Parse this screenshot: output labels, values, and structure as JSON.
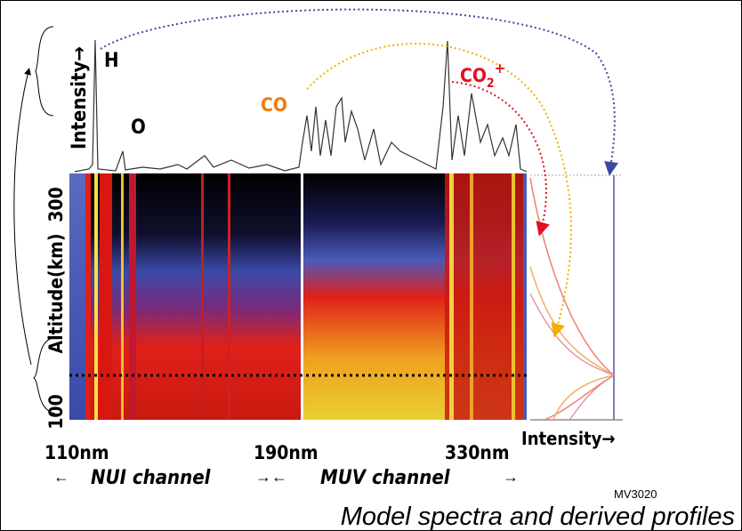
{
  "labels": {
    "intensity_top": "Intensity→",
    "h": "H",
    "o": "O",
    "co": "CO",
    "co2_plus": {
      "base": "CO",
      "sub": "2",
      "sup": "+"
    },
    "alt_300": "300",
    "altitude": "Altitude(km)",
    "alt_100": "100",
    "intensity_right": "Intensity→",
    "nm_110": "110nm",
    "nm_190": "190nm",
    "nm_330": "330nm",
    "arrow_left": "←",
    "arrow_mid": "→←",
    "arrow_right": "→",
    "nui": "NUI channel",
    "muv": "MUV channel",
    "code": "MV3020",
    "caption": "Model spectra and derived profiles"
  }
}
